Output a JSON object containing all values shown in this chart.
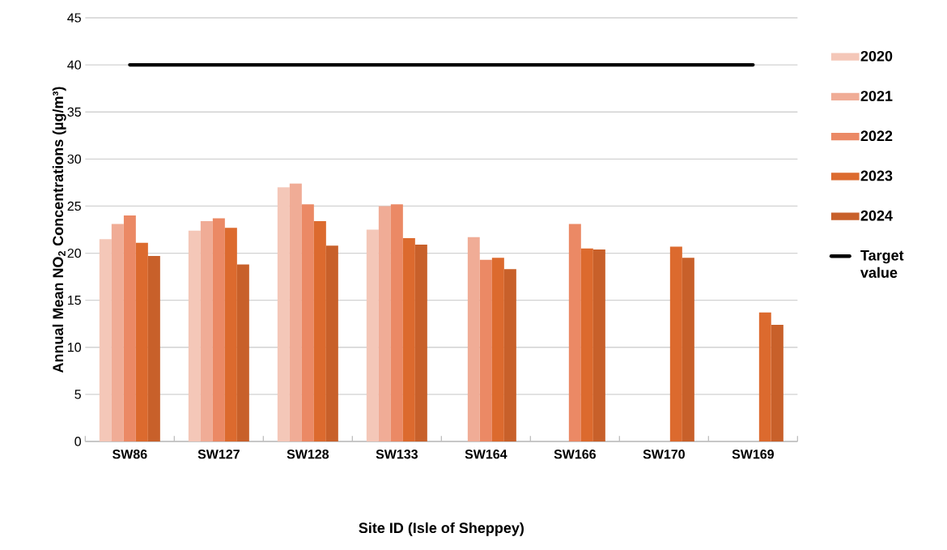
{
  "chart_data": {
    "type": "bar",
    "xlabel": "Site ID (Isle of Sheppey)",
    "ylabel": "Annual Mean NO$_{2}$ Concentrations (µg/m³)",
    "categories": [
      "SW86",
      "SW127",
      "SW128",
      "SW133",
      "SW164",
      "SW166",
      "SW170",
      "SW169"
    ],
    "series": [
      {
        "name": "2020",
        "color": "#f4c7b8",
        "values": [
          21.5,
          22.4,
          27.0,
          22.5,
          null,
          null,
          null,
          null
        ]
      },
      {
        "name": "2021",
        "color": "#f0ac96",
        "values": [
          23.1,
          23.4,
          27.4,
          25.0,
          21.7,
          null,
          null,
          null
        ]
      },
      {
        "name": "2022",
        "color": "#eb8965",
        "values": [
          24.0,
          23.7,
          25.2,
          25.2,
          19.3,
          23.1,
          null,
          null
        ]
      },
      {
        "name": "2023",
        "color": "#dc6a2e",
        "values": [
          21.1,
          22.7,
          23.4,
          21.6,
          19.5,
          20.5,
          20.7,
          13.7
        ]
      },
      {
        "name": "2024",
        "color": "#c8602a",
        "values": [
          19.7,
          18.8,
          20.8,
          20.9,
          18.3,
          20.4,
          19.5,
          12.4
        ]
      },
      {
        "name": "Target value",
        "type": "line",
        "color": "#000000",
        "values": [
          40,
          40,
          40,
          40,
          40,
          40,
          40,
          40
        ]
      }
    ],
    "ylim": [
      0,
      45
    ],
    "yticks": [
      0,
      5,
      10,
      15,
      20,
      25,
      30,
      35,
      40,
      45
    ],
    "grid": "y",
    "legend": "right"
  }
}
